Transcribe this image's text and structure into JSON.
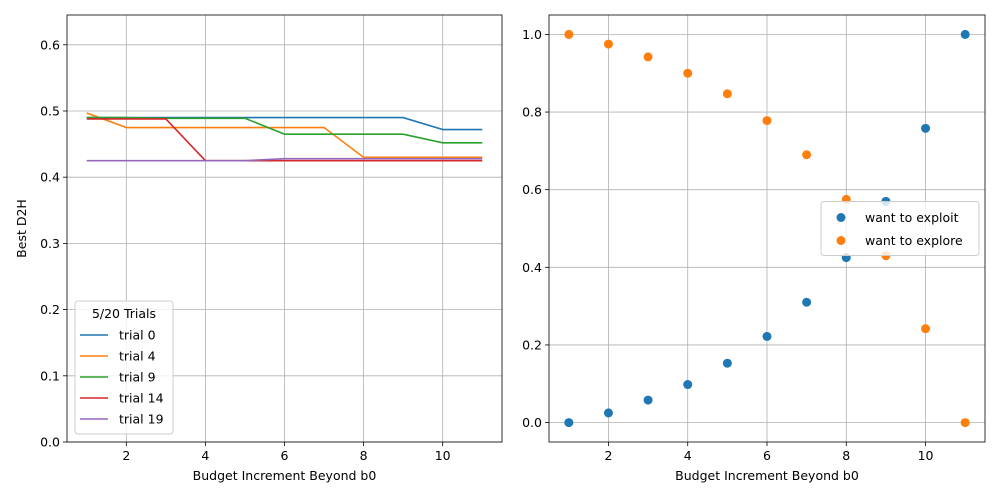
{
  "chart_data": [
    {
      "type": "line",
      "xlabel": "Budget Increment Beyond b0",
      "ylabel": "Best D2H",
      "xlim": [
        0.5,
        11.5
      ],
      "ylim": [
        0,
        0.645
      ],
      "xticks": [
        2,
        4,
        6,
        8,
        10
      ],
      "yticks": [
        0.0,
        0.1,
        0.2,
        0.3,
        0.4,
        0.5,
        0.6
      ],
      "ytick_labels": [
        "0.0",
        "0.1",
        "0.2",
        "0.3",
        "0.4",
        "0.5",
        "0.6"
      ],
      "grid": true,
      "legend": {
        "title": "5/20 Trials",
        "placement": "lower-left"
      },
      "x": [
        1,
        2,
        3,
        4,
        5,
        6,
        7,
        8,
        9,
        10,
        11
      ],
      "series": [
        {
          "name": "trial 0",
          "color": "#1f77b4",
          "values": [
            0.49,
            0.49,
            0.49,
            0.49,
            0.49,
            0.49,
            0.49,
            0.49,
            0.49,
            0.472,
            0.472
          ]
        },
        {
          "name": "trial 4",
          "color": "#ff7f0e",
          "values": [
            0.497,
            0.475,
            0.475,
            0.475,
            0.475,
            0.475,
            0.475,
            0.43,
            0.43,
            0.43,
            0.43
          ]
        },
        {
          "name": "trial 9",
          "color": "#2ca02c",
          "values": [
            0.49,
            0.49,
            0.489,
            0.489,
            0.489,
            0.465,
            0.465,
            0.465,
            0.465,
            0.452,
            0.452
          ]
        },
        {
          "name": "trial 14",
          "color": "#d62728",
          "values": [
            0.488,
            0.488,
            0.488,
            0.425,
            0.425,
            0.425,
            0.425,
            0.425,
            0.425,
            0.425,
            0.425
          ]
        },
        {
          "name": "trial 19",
          "color": "#9467bd",
          "values": [
            0.425,
            0.425,
            0.425,
            0.425,
            0.425,
            0.428,
            0.428,
            0.428,
            0.428,
            0.428,
            0.428
          ]
        }
      ]
    },
    {
      "type": "scatter",
      "xlabel": "Budget Increment Beyond b0",
      "ylabel": "",
      "xlim": [
        0.5,
        11.5
      ],
      "ylim": [
        -0.05,
        1.05
      ],
      "xticks": [
        2,
        4,
        6,
        8,
        10
      ],
      "yticks": [
        0.0,
        0.2,
        0.4,
        0.6,
        0.8,
        1.0
      ],
      "ytick_labels": [
        "0.0",
        "0.2",
        "0.4",
        "0.6",
        "0.8",
        "1.0"
      ],
      "grid": true,
      "legend": {
        "placement": "center-right"
      },
      "series": [
        {
          "name": "want to exploit",
          "color": "#1f77b4",
          "x": [
            1,
            2,
            3,
            4,
            5,
            6,
            7,
            8,
            9,
            10,
            11
          ],
          "values": [
            0.0,
            0.025,
            0.058,
            0.098,
            0.153,
            0.222,
            0.31,
            0.425,
            0.57,
            0.758,
            1.0
          ]
        },
        {
          "name": "want to explore",
          "color": "#ff7f0e",
          "x": [
            1,
            2,
            3,
            4,
            5,
            6,
            7,
            8,
            9,
            10,
            11
          ],
          "values": [
            1.0,
            0.975,
            0.942,
            0.9,
            0.847,
            0.778,
            0.69,
            0.575,
            0.43,
            0.242,
            0.0
          ]
        }
      ]
    }
  ]
}
